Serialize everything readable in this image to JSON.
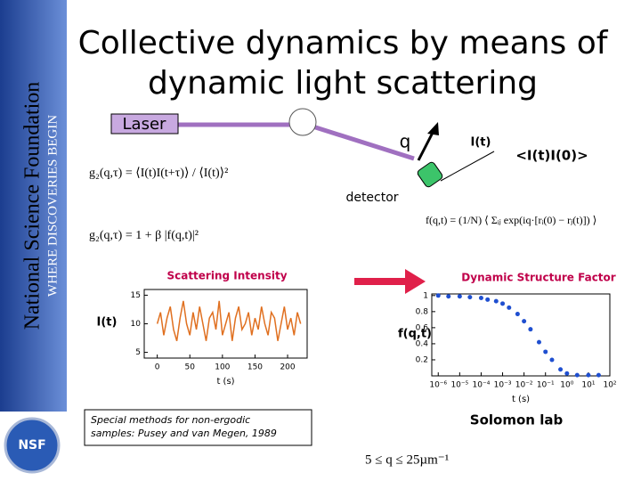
{
  "sidebar": {
    "title": "National Science Foundation",
    "subtitle": "WHERE DISCOVERIES BEGIN",
    "logo": "NSF"
  },
  "title": [
    "Collective dynamics by means of",
    "dynamic light scattering"
  ],
  "diagram": {
    "laser": "Laser",
    "q": "q",
    "intensity": "I(t)",
    "correlation": "<I(t)I(0)>",
    "detector": "detector"
  },
  "equations": [
    "g₂(q,τ) = ⟨I(t)I(t+τ)⟩ / ⟨I(t)⟩²",
    "g₂(q,τ) = 1 + β |f(q,t)|²",
    "f(q,t) = (1/N) ⟨ Σᵢⱼ exp(iq·[rᵢ(0) − rⱼ(t)]) ⟩",
    "5 ≤ q ≤ 25µm⁻¹"
  ],
  "chart_data": [
    {
      "type": "line",
      "title": "Scattering Intensity",
      "ylabel": "I(t)",
      "xlabel": "t (s)",
      "color": "#e07020",
      "x": [
        0,
        5,
        10,
        15,
        20,
        25,
        30,
        35,
        40,
        45,
        50,
        55,
        60,
        65,
        70,
        75,
        80,
        85,
        90,
        95,
        100,
        105,
        110,
        115,
        120,
        125,
        130,
        135,
        140,
        145,
        150,
        155,
        160,
        165,
        170,
        175,
        180,
        185,
        190,
        195,
        200,
        205,
        210,
        215,
        220
      ],
      "values": [
        10,
        12,
        8,
        11,
        13,
        9,
        7,
        11,
        14,
        10,
        8,
        12,
        9,
        13,
        10,
        7,
        11,
        12,
        9,
        14,
        8,
        10,
        12,
        7,
        11,
        13,
        9,
        10,
        12,
        8,
        11,
        9,
        13,
        10,
        8,
        12,
        11,
        7,
        10,
        13,
        9,
        11,
        8,
        12,
        10
      ],
      "xlim": [
        -20,
        230
      ],
      "ylim": [
        4,
        16
      ],
      "xticks": [
        0,
        50,
        100,
        150,
        200
      ],
      "yticks": [
        5,
        10,
        15
      ]
    },
    {
      "type": "scatter",
      "title": "Dynamic Structure Factor",
      "ylabel": "f(q,t)",
      "xlabel": "t (s)",
      "color": "#1f4fd0",
      "log_x": true,
      "x": [
        1e-06,
        3e-06,
        1e-05,
        3e-05,
        0.0001,
        0.0002,
        0.0005,
        0.001,
        0.002,
        0.005,
        0.01,
        0.02,
        0.05,
        0.1,
        0.2,
        0.5,
        1,
        3,
        10,
        30
      ],
      "values": [
        1,
        0.99,
        0.99,
        0.98,
        0.97,
        0.95,
        0.93,
        0.9,
        0.85,
        0.77,
        0.68,
        0.58,
        0.42,
        0.3,
        0.2,
        0.08,
        0.03,
        0.01,
        0.01,
        0.01
      ],
      "xlim": [
        5e-07,
        100
      ],
      "ylim": [
        0,
        1.02
      ],
      "xticks": [
        {
          "value": 1e-06,
          "label": "10⁻⁶"
        },
        {
          "value": 1e-05,
          "label": "10⁻⁵"
        },
        {
          "value": 0.0001,
          "label": "10⁻⁴"
        },
        {
          "value": 0.001,
          "label": "10⁻³"
        },
        {
          "value": 0.01,
          "label": "10⁻²"
        },
        {
          "value": 0.1,
          "label": "10⁻¹"
        },
        {
          "value": 1,
          "label": "10⁰"
        },
        {
          "value": 10,
          "label": "10¹"
        },
        {
          "value": 100,
          "label": "10²"
        }
      ],
      "yticks": [
        0.2,
        0.4,
        0.6,
        0.8,
        1
      ]
    }
  ],
  "note": "Special methods for non-ergodic samples: Pusey and van Megen, 1989",
  "credit": "Solomon lab"
}
